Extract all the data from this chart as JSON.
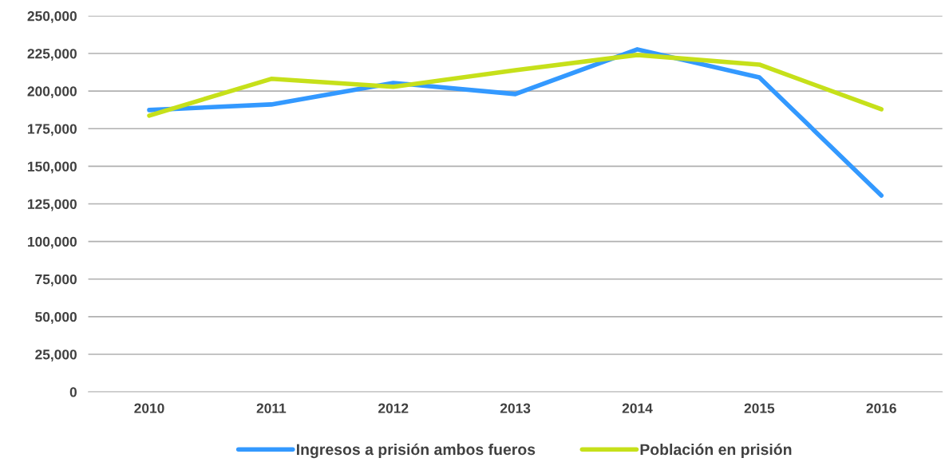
{
  "chart_data": {
    "type": "line",
    "categories": [
      "2010",
      "2011",
      "2012",
      "2013",
      "2014",
      "2015",
      "2016"
    ],
    "series": [
      {
        "name": "Ingresos a prisión ambos fueros",
        "color": "#3399ff",
        "values": [
          187400,
          191100,
          205400,
          198000,
          227700,
          209100,
          130600
        ]
      },
      {
        "name": "Población en prisión",
        "color": "#c6e01a",
        "values": [
          183700,
          208100,
          202800,
          213900,
          224000,
          217600,
          187900
        ]
      }
    ],
    "ylim": [
      0,
      250000
    ],
    "yticks": [
      {
        "value": 0,
        "label": "0"
      },
      {
        "value": 25000,
        "label": "25,000"
      },
      {
        "value": 50000,
        "label": "50,000"
      },
      {
        "value": 75000,
        "label": "75,000"
      },
      {
        "value": 100000,
        "label": "100,000"
      },
      {
        "value": 125000,
        "label": "125,000"
      },
      {
        "value": 150000,
        "label": "150,000"
      },
      {
        "value": 175000,
        "label": "175,000"
      },
      {
        "value": 200000,
        "label": "200,000"
      },
      {
        "value": 225000,
        "label": "225,000"
      },
      {
        "value": 250000,
        "label": "250,000"
      }
    ],
    "grid": "y",
    "legend": "bottom",
    "marker": "none",
    "line_style": "solid"
  }
}
